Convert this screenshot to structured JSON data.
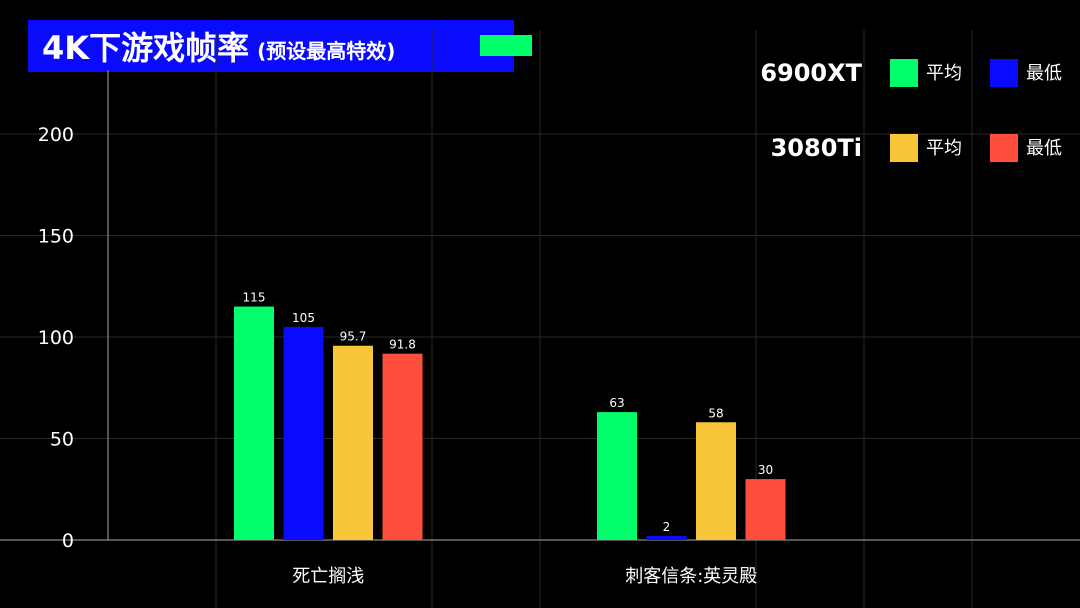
{
  "title": {
    "main": "4K下游戏帧率",
    "sub": "(预设最高特效)"
  },
  "colors": {
    "title_bg": "#0a0aff",
    "accent_bar": "#00ff6a",
    "background": "#000000",
    "grid": "#2a2a2a",
    "axis": "#888888"
  },
  "legend": {
    "groups": [
      {
        "name": "6900XT",
        "items": [
          {
            "label": "平均",
            "color": "#00ff6a"
          },
          {
            "label": "最低",
            "color": "#0a0aff"
          }
        ]
      },
      {
        "name": "3080Ti",
        "items": [
          {
            "label": "平均",
            "color": "#f9c63a"
          },
          {
            "label": "最低",
            "color": "#ff4e3c"
          }
        ]
      }
    ]
  },
  "chart_data": {
    "type": "bar",
    "title": "4K下游戏帧率 (预设最高特效)",
    "categories": [
      "死亡搁浅",
      "刺客信条:英灵殿"
    ],
    "series": [
      {
        "name": "6900XT 平均",
        "color": "#00ff6a",
        "values": [
          115,
          63
        ],
        "labels": [
          "115",
          "63"
        ]
      },
      {
        "name": "6900XT 最低",
        "color": "#0a0aff",
        "values": [
          105,
          2
        ],
        "labels": [
          "105",
          "2"
        ]
      },
      {
        "name": "3080Ti 平均",
        "color": "#f9c63a",
        "values": [
          95.7,
          58
        ],
        "labels": [
          "95.7",
          "58"
        ]
      },
      {
        "name": "3080Ti 最低",
        "color": "#ff4e3c",
        "values": [
          91.8,
          30
        ],
        "labels": [
          "91.8",
          "30"
        ]
      }
    ],
    "ylim": [
      0,
      200
    ],
    "yticks": [
      0,
      50,
      100,
      150,
      200
    ],
    "xlabel": "",
    "ylabel": "",
    "grid": true,
    "legend_position": "top-right"
  }
}
